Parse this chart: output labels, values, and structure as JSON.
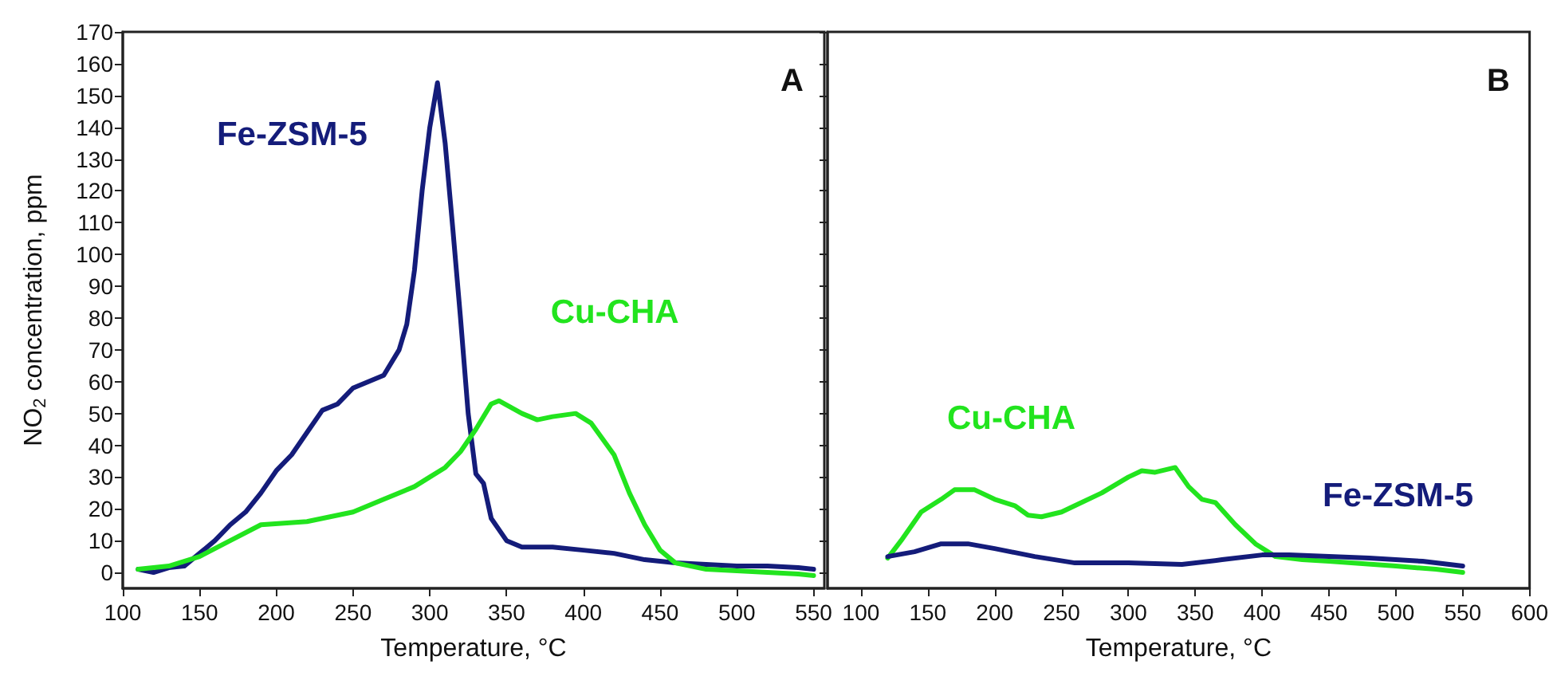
{
  "chart_data": [
    {
      "type": "line",
      "title": "A",
      "xlabel": "Temperature, °C",
      "ylabel": "NO$_{2}$ concentration, ppm",
      "xlim": [
        100,
        557
      ],
      "xticks": [
        100,
        150,
        200,
        250,
        300,
        350,
        400,
        450,
        500,
        550
      ],
      "ylim": [
        -5,
        170
      ],
      "yticks": [
        0,
        10,
        20,
        30,
        40,
        50,
        60,
        70,
        80,
        90,
        100,
        110,
        120,
        130,
        140,
        150,
        160,
        170
      ],
      "grid": false,
      "legend": false,
      "marker": "none",
      "line_style": "solid",
      "series": [
        {
          "name": "Fe-ZSM-5",
          "color": "#141c7a",
          "x": [
            110,
            120,
            130,
            140,
            150,
            160,
            170,
            180,
            190,
            200,
            210,
            220,
            230,
            240,
            250,
            260,
            270,
            280,
            285,
            290,
            295,
            300,
            305,
            310,
            315,
            320,
            325,
            330,
            335,
            340,
            350,
            360,
            380,
            400,
            420,
            440,
            460,
            480,
            500,
            520,
            540,
            550
          ],
          "values": [
            1,
            0,
            1.5,
            2,
            6,
            10,
            15,
            19,
            25,
            32,
            37,
            44,
            51,
            53,
            58,
            60,
            62,
            70,
            78,
            95,
            120,
            140,
            154,
            135,
            108,
            80,
            50,
            31,
            28,
            17,
            10,
            8,
            8,
            7,
            6,
            4,
            3,
            2.5,
            2,
            2,
            1.5,
            1
          ]
        },
        {
          "name": "Cu-CHA",
          "color": "#22e41e",
          "x": [
            110,
            130,
            150,
            170,
            190,
            220,
            250,
            270,
            290,
            300,
            310,
            320,
            330,
            340,
            345,
            360,
            370,
            380,
            395,
            405,
            420,
            430,
            440,
            450,
            460,
            480,
            500,
            520,
            540,
            550
          ],
          "values": [
            1,
            2,
            5,
            10,
            15,
            16,
            19,
            23,
            27,
            30,
            33,
            38,
            45,
            53,
            54,
            50,
            48,
            49,
            50,
            47,
            37,
            25,
            15,
            7,
            3,
            1,
            0.5,
            0,
            -0.5,
            -1
          ]
        }
      ]
    },
    {
      "type": "line",
      "title": "B",
      "xlabel": "Temperature, °C",
      "xlim": [
        75,
        600
      ],
      "xticks": [
        100,
        150,
        200,
        250,
        300,
        350,
        400,
        450,
        500,
        550,
        600
      ],
      "ylim": [
        -5,
        170
      ],
      "yticks": [
        0,
        10,
        20,
        30,
        40,
        50,
        60,
        70,
        80,
        90,
        100,
        110,
        120,
        130,
        140,
        150,
        160,
        170
      ],
      "tick_labels": "x",
      "grid": false,
      "legend": false,
      "marker": "none",
      "line_style": "solid",
      "series": [
        {
          "name": "Cu-CHA",
          "color": "#22e41e",
          "x": [
            120,
            130,
            145,
            160,
            170,
            185,
            200,
            215,
            225,
            235,
            250,
            260,
            280,
            300,
            310,
            320,
            335,
            345,
            355,
            365,
            380,
            395,
            410,
            430,
            450,
            500,
            530,
            550
          ],
          "values": [
            4.5,
            10,
            19,
            23,
            26,
            26,
            23,
            21,
            18,
            17.5,
            19,
            21,
            25,
            30,
            32,
            31.5,
            33,
            27,
            23,
            22,
            15,
            9,
            5,
            4,
            3.5,
            2,
            1,
            0
          ]
        },
        {
          "name": "Fe-ZSM-5",
          "color": "#141c7a",
          "x": [
            120,
            140,
            160,
            180,
            200,
            230,
            260,
            300,
            340,
            370,
            400,
            420,
            450,
            480,
            520,
            550
          ],
          "values": [
            5,
            6.5,
            9,
            9,
            7.5,
            5,
            3,
            3,
            2.5,
            4,
            5.5,
            5.5,
            5,
            4.5,
            3.5,
            2
          ]
        }
      ]
    }
  ]
}
